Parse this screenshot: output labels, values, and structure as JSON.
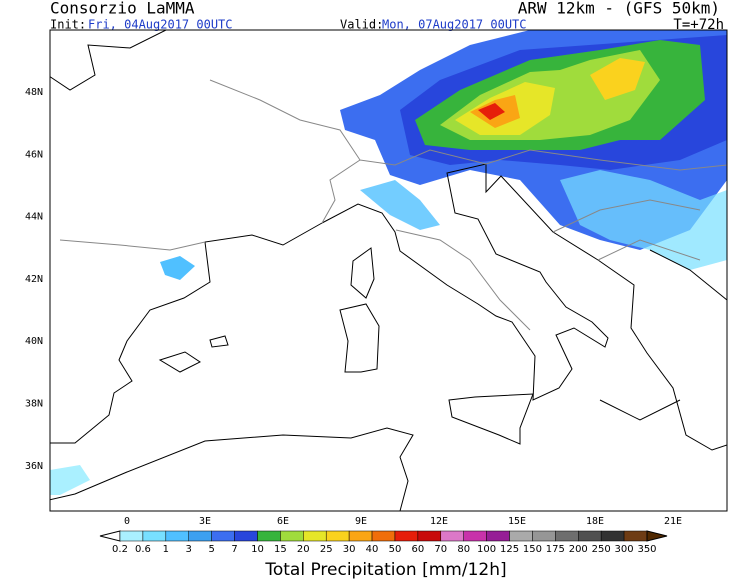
{
  "header": {
    "left_title": "Consorzio LaMMA",
    "init_label": "Init:",
    "init_value": "Fri, 04Aug2017 00UTC",
    "right_title": "ARW 12km - (GFS 50km)",
    "valid_label": "Valid:",
    "valid_value": "Mon, 07Aug2017 00UTC",
    "lead": "T=+72h"
  },
  "axes": {
    "lat_labels": [
      "48N",
      "46N",
      "44N",
      "42N",
      "40N",
      "38N",
      "36N"
    ],
    "lon_labels": [
      "0",
      "3E",
      "6E",
      "9E",
      "12E",
      "15E",
      "18E",
      "21E"
    ]
  },
  "colorbar": {
    "labels": [
      "0.2",
      "0.6",
      "1",
      "3",
      "5",
      "7",
      "10",
      "15",
      "20",
      "25",
      "30",
      "40",
      "50",
      "60",
      "70",
      "80",
      "100",
      "125",
      "150",
      "175",
      "200",
      "250",
      "300",
      "350"
    ],
    "colors": [
      "#aaf0ff",
      "#78e0ff",
      "#50c0ff",
      "#3ca0f0",
      "#3c6ef0",
      "#2846dc",
      "#37b43c",
      "#a0dc3c",
      "#e6e628",
      "#fad21e",
      "#faa514",
      "#f06e0a",
      "#e61e0a",
      "#c80a0a",
      "#dc78c8",
      "#c832aa",
      "#961e96",
      "#aaaaaa",
      "#969696",
      "#6e6e6e",
      "#505050",
      "#323232",
      "#6e3c14"
    ],
    "over_color": "#502800",
    "title": "Total Precipitation [mm/12h]"
  }
}
